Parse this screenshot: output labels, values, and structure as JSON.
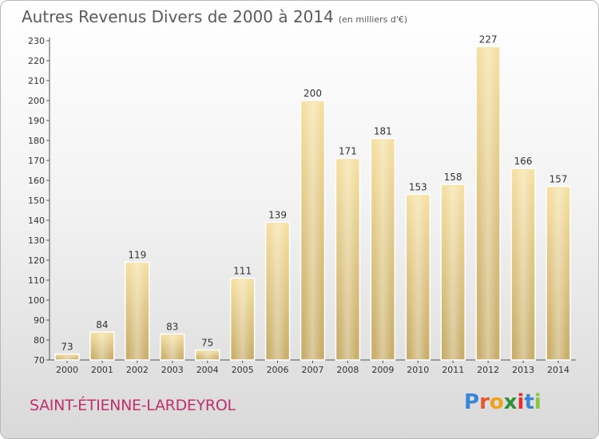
{
  "title": "Autres Revenus Divers de 2000 à 2014",
  "unit": "(en milliers d'€)",
  "commune": "SAINT-ÉTIENNE-LARDEYROL",
  "logo": {
    "letters": [
      "P",
      "r",
      "o",
      "x",
      "i",
      "t",
      "i"
    ],
    "colors": [
      "#3a86d6",
      "#e4582b",
      "#f0a21c",
      "#2f8f3a",
      "#e0312e",
      "#3a86d6",
      "#8cc63f"
    ]
  },
  "chart_data": {
    "type": "bar",
    "categories": [
      "2000",
      "2001",
      "2002",
      "2003",
      "2004",
      "2005",
      "2006",
      "2007",
      "2008",
      "2009",
      "2010",
      "2011",
      "2012",
      "2013",
      "2014"
    ],
    "values": [
      73,
      84,
      119,
      83,
      75,
      111,
      139,
      200,
      171,
      181,
      153,
      158,
      227,
      166,
      157
    ],
    "ylim": [
      70,
      230
    ],
    "yticks": [
      70,
      80,
      90,
      100,
      110,
      120,
      130,
      140,
      150,
      160,
      170,
      180,
      190,
      200,
      210,
      220,
      230
    ],
    "grid": false,
    "bar_color": "#e8cc85"
  }
}
